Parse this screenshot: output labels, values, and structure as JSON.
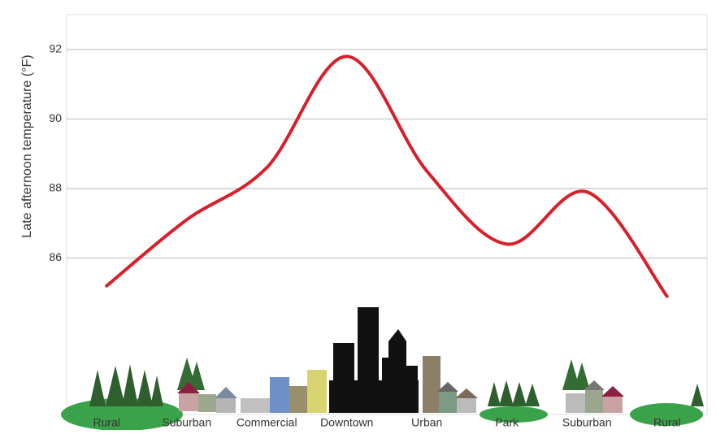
{
  "chart_data": {
    "type": "line",
    "y_label": "Late afternoon temperature (°F)",
    "categories": [
      "Rural",
      "Suburban",
      "Commercial",
      "Downtown",
      "Urban",
      "Park",
      "Suburban",
      "Rural"
    ],
    "series": [
      {
        "color": "#d81f2a",
        "values": [
          85.2,
          87.1,
          88.6,
          91.8,
          88.5,
          86.4,
          87.9,
          84.9
        ]
      }
    ],
    "ylim": [
      81.5,
      93
    ],
    "yticks": [
      86,
      88,
      90,
      92
    ],
    "grid": true
  }
}
